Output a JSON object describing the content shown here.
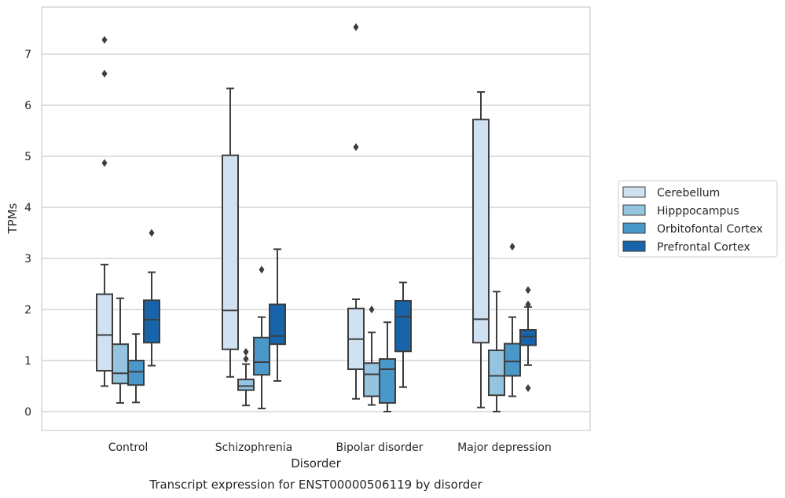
{
  "chart_data": {
    "type": "boxplot",
    "xlabel": "Disorder",
    "ylabel": "TPMs",
    "caption": "Transcript expression for ENST00000506119 by disorder",
    "ylim": [
      -0.35,
      7.95
    ],
    "yticks": [
      0,
      1,
      2,
      3,
      4,
      5,
      6,
      7
    ],
    "grid": "horizontal",
    "legend_position": "right",
    "categories": [
      "Control",
      "Schizophrenia",
      "Bipolar disorder",
      "Major depression"
    ],
    "series": [
      {
        "name": "Cerebellum",
        "color": "#d0e1f2",
        "boxes": [
          {
            "whisker_low": 0.5,
            "q1": 0.8,
            "median": 1.5,
            "q3": 2.3,
            "whisker_high": 2.88,
            "outliers": [
              4.87,
              6.62,
              7.28
            ]
          },
          {
            "whisker_low": 0.68,
            "q1": 1.22,
            "median": 1.98,
            "q3": 5.02,
            "whisker_high": 6.33,
            "outliers": []
          },
          {
            "whisker_low": 0.25,
            "q1": 0.83,
            "median": 1.42,
            "q3": 2.02,
            "whisker_high": 2.2,
            "outliers": [
              5.18,
              7.53
            ]
          },
          {
            "whisker_low": 0.08,
            "q1": 1.35,
            "median": 1.81,
            "q3": 5.72,
            "whisker_high": 6.26,
            "outliers": []
          }
        ]
      },
      {
        "name": "Hipppocampus",
        "color": "#94c4df",
        "boxes": [
          {
            "whisker_low": 0.17,
            "q1": 0.55,
            "median": 0.75,
            "q3": 1.32,
            "whisker_high": 2.22,
            "outliers": []
          },
          {
            "whisker_low": 0.12,
            "q1": 0.42,
            "median": 0.5,
            "q3": 0.63,
            "whisker_high": 0.93,
            "outliers": [
              1.03,
              1.17
            ]
          },
          {
            "whisker_low": 0.13,
            "q1": 0.3,
            "median": 0.73,
            "q3": 0.95,
            "whisker_high": 1.55,
            "outliers": [
              2.0
            ]
          },
          {
            "whisker_low": 0.0,
            "q1": 0.32,
            "median": 0.7,
            "q3": 1.2,
            "whisker_high": 2.35,
            "outliers": []
          }
        ]
      },
      {
        "name": "Orbitofontal Cortex",
        "color": "#4a98c9",
        "boxes": [
          {
            "whisker_low": 0.18,
            "q1": 0.52,
            "median": 0.78,
            "q3": 1.0,
            "whisker_high": 1.52,
            "outliers": []
          },
          {
            "whisker_low": 0.06,
            "q1": 0.72,
            "median": 0.97,
            "q3": 1.45,
            "whisker_high": 1.85,
            "outliers": [
              2.78
            ]
          },
          {
            "whisker_low": 0.0,
            "q1": 0.17,
            "median": 0.83,
            "q3": 1.03,
            "whisker_high": 1.75,
            "outliers": []
          },
          {
            "whisker_low": 0.3,
            "q1": 0.7,
            "median": 0.98,
            "q3": 1.33,
            "whisker_high": 1.85,
            "outliers": [
              3.23
            ]
          }
        ]
      },
      {
        "name": "Prefrontal Cortex",
        "color": "#1764ab",
        "boxes": [
          {
            "whisker_low": 0.9,
            "q1": 1.35,
            "median": 1.8,
            "q3": 2.18,
            "whisker_high": 2.73,
            "outliers": [
              3.5
            ]
          },
          {
            "whisker_low": 0.6,
            "q1": 1.32,
            "median": 1.48,
            "q3": 2.1,
            "whisker_high": 3.18,
            "outliers": []
          },
          {
            "whisker_low": 0.48,
            "q1": 1.18,
            "median": 1.86,
            "q3": 2.17,
            "whisker_high": 2.53,
            "outliers": []
          },
          {
            "whisker_low": 0.91,
            "q1": 1.3,
            "median": 1.47,
            "q3": 1.6,
            "whisker_high": 2.05,
            "outliers": [
              0.46,
              2.1,
              2.38
            ]
          }
        ]
      }
    ]
  },
  "style": {
    "line_color": "#3d3d3d",
    "grid_color": "#cccccc",
    "spine_color": "#cccccc",
    "background": "#ffffff"
  }
}
